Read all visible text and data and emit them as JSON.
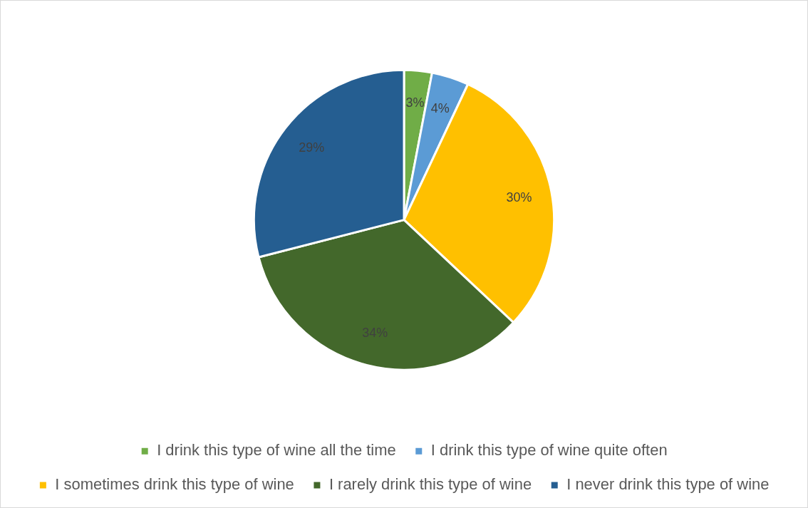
{
  "chart_data": {
    "type": "pie",
    "categories": [
      "I drink this type of wine all the time",
      "I drink this type of wine quite often",
      "I sometimes drink this type of wine",
      "I rarely drink this type of wine",
      "I never drink this type of wine"
    ],
    "values": [
      3,
      4,
      30,
      34,
      29
    ],
    "colors": [
      "#70ad47",
      "#5b9bd5",
      "#ffc000",
      "#43682b",
      "#255e91"
    ],
    "value_labels": [
      "3%",
      "4%",
      "30%",
      "34%",
      "29%"
    ],
    "legend": "bottom"
  }
}
